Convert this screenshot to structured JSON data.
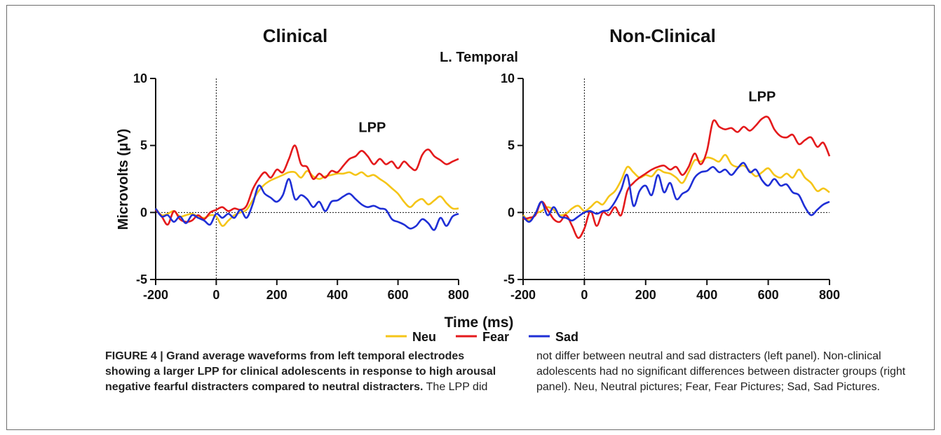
{
  "figure": {
    "fig_title": "L. Temporal",
    "x_axis_title": "Time (ms)",
    "y_axis_title": "Microvolts (μV)",
    "colors": {
      "Neu": "#f5c518",
      "Fear": "#e41a1c",
      "Sad": "#1f2fd6"
    }
  },
  "chart_data": [
    {
      "type": "line",
      "title": "Clinical",
      "xlabel": "Time (ms)",
      "ylabel": "Microvolts (μV)",
      "xlim": [
        -200,
        800
      ],
      "ylim": [
        -5,
        10
      ],
      "x_ticks": [
        -200,
        0,
        200,
        400,
        600,
        800
      ],
      "y_ticks": [
        -5,
        0,
        5,
        10
      ],
      "annotations": [
        {
          "text": "LPP",
          "x": 515,
          "y": 6.0
        }
      ],
      "series": [
        {
          "name": "Neu",
          "color": "#f5c518",
          "x": [
            -200,
            -180,
            -160,
            -140,
            -120,
            -100,
            -80,
            -60,
            -40,
            -20,
            0,
            20,
            40,
            60,
            80,
            100,
            120,
            140,
            160,
            180,
            200,
            220,
            240,
            260,
            280,
            300,
            320,
            340,
            360,
            380,
            400,
            420,
            440,
            460,
            480,
            500,
            520,
            540,
            560,
            580,
            600,
            620,
            640,
            660,
            680,
            700,
            720,
            740,
            760,
            780,
            800
          ],
          "y": [
            0.3,
            -0.2,
            -0.1,
            0.1,
            -0.3,
            -0.2,
            -0.1,
            -0.3,
            -0.4,
            -0.2,
            -0.3,
            -1.0,
            -0.6,
            -0.2,
            0.0,
            0.2,
            0.9,
            1.6,
            2.1,
            2.4,
            2.6,
            2.8,
            3.0,
            3.0,
            2.6,
            3.1,
            2.7,
            2.5,
            2.7,
            2.8,
            2.9,
            2.9,
            3.0,
            2.8,
            3.0,
            2.7,
            2.8,
            2.5,
            2.2,
            1.8,
            1.4,
            0.8,
            0.4,
            0.8,
            1.0,
            0.6,
            0.9,
            1.2,
            0.7,
            0.3,
            0.3
          ]
        },
        {
          "name": "Fear",
          "color": "#e41a1c",
          "x": [
            -200,
            -180,
            -160,
            -140,
            -120,
            -100,
            -80,
            -60,
            -40,
            -20,
            0,
            20,
            40,
            60,
            80,
            100,
            120,
            140,
            160,
            180,
            200,
            220,
            240,
            260,
            280,
            300,
            320,
            340,
            360,
            380,
            400,
            420,
            440,
            460,
            480,
            500,
            520,
            540,
            560,
            580,
            600,
            620,
            640,
            660,
            680,
            700,
            720,
            740,
            760,
            780,
            800
          ],
          "y": [
            0.2,
            -0.3,
            -0.9,
            0.1,
            -0.5,
            -0.7,
            -0.6,
            -0.2,
            -0.5,
            0.0,
            0.2,
            0.4,
            0.1,
            0.3,
            0.2,
            0.5,
            1.7,
            2.5,
            3.0,
            2.6,
            3.2,
            3.0,
            4.0,
            5.0,
            3.6,
            3.4,
            2.5,
            2.9,
            2.6,
            3.1,
            3.0,
            3.5,
            4.0,
            4.2,
            4.6,
            4.2,
            3.6,
            4.0,
            3.6,
            3.8,
            3.3,
            3.8,
            3.4,
            3.2,
            4.3,
            4.7,
            4.2,
            3.9,
            3.6,
            3.8,
            4.0
          ]
        },
        {
          "name": "Sad",
          "color": "#1f2fd6",
          "x": [
            -200,
            -180,
            -160,
            -140,
            -120,
            -100,
            -80,
            -60,
            -40,
            -20,
            0,
            20,
            40,
            60,
            80,
            100,
            120,
            140,
            160,
            180,
            200,
            220,
            240,
            260,
            280,
            300,
            320,
            340,
            360,
            380,
            400,
            420,
            440,
            460,
            480,
            500,
            520,
            540,
            560,
            580,
            600,
            620,
            640,
            660,
            680,
            700,
            720,
            740,
            760,
            780,
            800
          ],
          "y": [
            0.3,
            -0.3,
            -0.2,
            -0.7,
            -0.3,
            -0.8,
            -0.2,
            -0.4,
            -0.6,
            -0.9,
            -0.1,
            -0.4,
            -0.1,
            -0.4,
            0.2,
            -0.4,
            0.6,
            2.0,
            1.4,
            1.1,
            0.8,
            1.3,
            2.5,
            1.0,
            1.3,
            1.0,
            0.4,
            0.8,
            0.1,
            0.8,
            0.9,
            1.2,
            1.4,
            1.0,
            0.6,
            0.4,
            0.5,
            0.3,
            0.2,
            -0.5,
            -0.7,
            -0.9,
            -1.2,
            -1.0,
            -0.5,
            -0.8,
            -1.3,
            -0.4,
            -1.0,
            -0.3,
            -0.1
          ]
        }
      ]
    },
    {
      "type": "line",
      "title": "Non-Clinical",
      "xlabel": "Time (ms)",
      "ylabel": "",
      "xlim": [
        -200,
        800
      ],
      "ylim": [
        -5,
        10
      ],
      "x_ticks": [
        -200,
        0,
        200,
        400,
        600,
        800
      ],
      "y_ticks": [
        -5,
        0,
        5,
        10
      ],
      "annotations": [
        {
          "text": "LPP",
          "x": 580,
          "y": 8.3
        }
      ],
      "series": [
        {
          "name": "Neu",
          "color": "#f5c518",
          "x": [
            -200,
            -180,
            -160,
            -140,
            -120,
            -100,
            -80,
            -60,
            -40,
            -20,
            0,
            20,
            40,
            60,
            80,
            100,
            120,
            140,
            160,
            180,
            200,
            220,
            240,
            260,
            280,
            300,
            320,
            340,
            360,
            380,
            400,
            420,
            440,
            460,
            480,
            500,
            520,
            540,
            560,
            580,
            600,
            620,
            640,
            660,
            680,
            700,
            720,
            740,
            760,
            780,
            800
          ],
          "y": [
            -0.2,
            -0.6,
            -0.1,
            0.1,
            0.4,
            0.2,
            -0.2,
            -0.1,
            0.3,
            0.5,
            0.1,
            0.4,
            0.8,
            0.6,
            1.2,
            1.6,
            2.4,
            3.4,
            3.0,
            2.6,
            2.8,
            2.7,
            3.2,
            3.0,
            2.9,
            2.6,
            2.2,
            3.0,
            3.9,
            3.8,
            4.1,
            4.0,
            3.8,
            4.3,
            3.6,
            3.4,
            3.5,
            3.1,
            2.7,
            3.0,
            3.3,
            2.8,
            2.6,
            2.9,
            2.6,
            3.2,
            2.6,
            2.2,
            1.6,
            1.8,
            1.5
          ]
        },
        {
          "name": "Fear",
          "color": "#e41a1c",
          "x": [
            -200,
            -180,
            -160,
            -140,
            -120,
            -100,
            -80,
            -60,
            -40,
            -20,
            0,
            20,
            40,
            60,
            80,
            100,
            120,
            140,
            160,
            180,
            200,
            220,
            240,
            260,
            280,
            300,
            320,
            340,
            360,
            380,
            400,
            420,
            440,
            460,
            480,
            500,
            520,
            540,
            560,
            580,
            600,
            620,
            640,
            660,
            680,
            700,
            720,
            740,
            760,
            780,
            800
          ],
          "y": [
            -0.5,
            -0.4,
            -0.2,
            0.8,
            0.2,
            -0.5,
            -0.7,
            -0.2,
            -1.0,
            -1.9,
            -1.2,
            0.1,
            -1.0,
            0.0,
            -0.2,
            0.4,
            -0.2,
            1.6,
            2.2,
            2.6,
            2.9,
            3.2,
            3.4,
            3.5,
            3.2,
            3.4,
            2.8,
            3.4,
            4.4,
            3.6,
            4.6,
            6.8,
            6.4,
            6.2,
            6.3,
            6.0,
            6.4,
            6.1,
            6.5,
            7.0,
            7.1,
            6.2,
            5.7,
            5.6,
            5.8,
            5.1,
            5.4,
            5.6,
            4.9,
            5.2,
            4.2
          ]
        },
        {
          "name": "Sad",
          "color": "#1f2fd6",
          "x": [
            -200,
            -180,
            -160,
            -140,
            -120,
            -100,
            -80,
            -60,
            -40,
            -20,
            0,
            20,
            40,
            60,
            80,
            100,
            120,
            140,
            160,
            180,
            200,
            220,
            240,
            260,
            280,
            300,
            320,
            340,
            360,
            380,
            400,
            420,
            440,
            460,
            480,
            500,
            520,
            540,
            560,
            580,
            600,
            620,
            640,
            660,
            680,
            700,
            720,
            740,
            760,
            780,
            800
          ],
          "y": [
            -0.3,
            -0.7,
            -0.1,
            0.8,
            -0.2,
            0.4,
            -0.3,
            -0.4,
            -0.6,
            -0.3,
            0.0,
            0.1,
            -0.1,
            0.1,
            0.2,
            0.8,
            1.7,
            2.8,
            0.5,
            1.6,
            2.0,
            1.3,
            2.8,
            1.5,
            2.2,
            1.0,
            1.4,
            1.7,
            2.6,
            3.0,
            3.1,
            3.4,
            3.0,
            3.2,
            2.8,
            3.3,
            3.7,
            3.0,
            3.2,
            2.4,
            2.0,
            2.5,
            2.0,
            2.1,
            1.5,
            1.3,
            0.4,
            -0.2,
            0.2,
            0.6,
            0.8
          ]
        }
      ]
    }
  ],
  "legend": [
    {
      "label": "Neu",
      "color": "#f5c518"
    },
    {
      "label": "Fear",
      "color": "#e41a1c"
    },
    {
      "label": "Sad",
      "color": "#1f2fd6"
    }
  ],
  "caption": {
    "bold_lead": "FIGURE 4 | Grand average waveforms from left temporal electrodes showing a larger LPP for clinical adolescents in response to high arousal negative fearful distracters compared to neutral distracters.",
    "text_left": " The LPP did",
    "text_right": "not differ between neutral and sad distracters (left panel). Non-clinical adolescents had no significant differences between distracter groups (right panel). Neu, Neutral pictures; Fear, Fear Pictures; Sad, Sad Pictures."
  }
}
